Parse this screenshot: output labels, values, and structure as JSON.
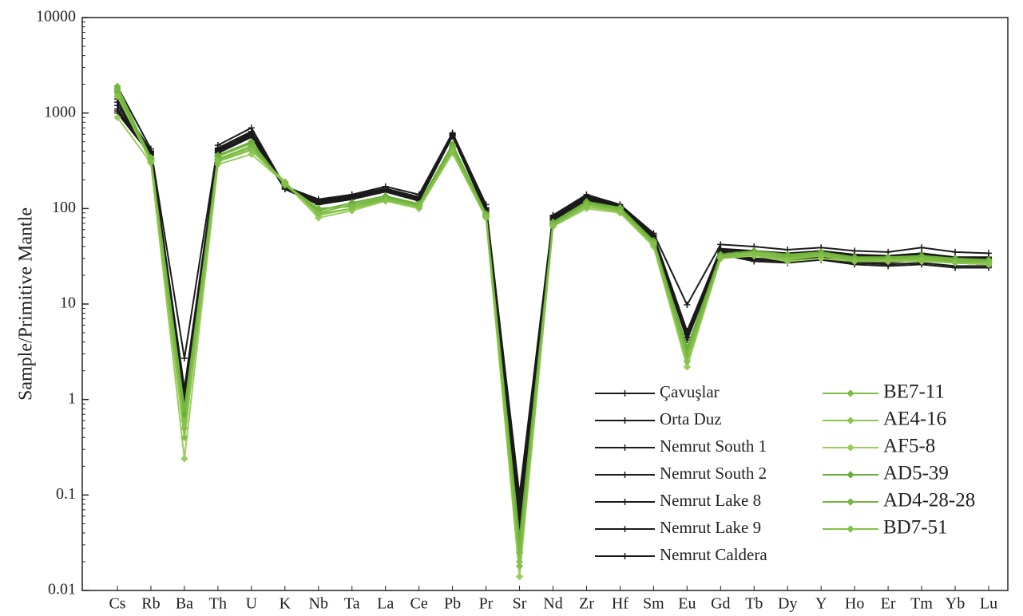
{
  "chart_data": {
    "type": "line",
    "yscale": "log",
    "y_label": "Sample/Primitive Mantle",
    "categories": [
      "Cs",
      "Rb",
      "Ba",
      "Th",
      "U",
      "K",
      "Nb",
      "Ta",
      "La",
      "Ce",
      "Pb",
      "Pr",
      "Sr",
      "Nd",
      "Zr",
      "Hf",
      "Sm",
      "Eu",
      "Gd",
      "Tb",
      "Dy",
      "Y",
      "Ho",
      "Er",
      "Tm",
      "Yb",
      "Lu"
    ],
    "ylim": [
      0.01,
      10000
    ],
    "yticks": [
      0.01,
      0.1,
      1,
      10,
      100,
      1000,
      10000
    ],
    "series": [
      {
        "name": "Çavuşlar",
        "color": "#1a1a1a",
        "marker": "plus",
        "values": [
          1900,
          420,
          2.7,
          460,
          700,
          170,
          125,
          140,
          170,
          140,
          620,
          110,
          0.1,
          85,
          140,
          110,
          55,
          9.8,
          42,
          40,
          37,
          39,
          36,
          35,
          39,
          35,
          34
        ]
      },
      {
        "name": "Orta Duz",
        "color": "#1a1a1a",
        "marker": "plus",
        "values": [
          1100,
          400,
          1.2,
          410,
          620,
          165,
          120,
          135,
          160,
          130,
          600,
          100,
          0.07,
          80,
          130,
          105,
          52,
          5,
          38,
          36,
          34,
          36,
          33,
          32,
          34,
          31,
          31
        ]
      },
      {
        "name": "Nemrut South 1",
        "color": "#1a1a1a",
        "marker": "plus",
        "values": [
          1300,
          380,
          1.0,
          400,
          580,
          160,
          115,
          130,
          155,
          125,
          590,
          95,
          0.05,
          78,
          125,
          100,
          50,
          4.5,
          35,
          30,
          29,
          31,
          28,
          27,
          29,
          27,
          26
        ]
      },
      {
        "name": "Nemrut South 2",
        "color": "#1a1a1a",
        "marker": "plus",
        "values": [
          1000,
          360,
          0.9,
          380,
          560,
          160,
          110,
          125,
          150,
          120,
          570,
          92,
          0.04,
          75,
          120,
          100,
          48,
          4.2,
          33,
          28,
          27,
          29,
          26,
          25,
          26,
          24,
          24
        ]
      },
      {
        "name": "Nemrut Lake 8",
        "color": "#1a1a1a",
        "marker": "plus",
        "values": [
          1200,
          390,
          1.1,
          420,
          600,
          165,
          118,
          132,
          158,
          128,
          600,
          98,
          0.06,
          82,
          128,
          103,
          51,
          4.8,
          36,
          33,
          31,
          33,
          30,
          29,
          30,
          28,
          28
        ]
      },
      {
        "name": "Nemrut Lake 9",
        "color": "#1a1a1a",
        "marker": "plus",
        "values": [
          1400,
          400,
          1.3,
          430,
          640,
          170,
          122,
          138,
          162,
          132,
          610,
          102,
          0.08,
          84,
          135,
          107,
          53,
          5.2,
          37,
          35,
          33,
          35,
          32,
          31,
          33,
          30,
          30
        ]
      },
      {
        "name": "Nemrut Caldera",
        "color": "#1a1a1a",
        "marker": "plus",
        "values": [
          1050,
          370,
          0.95,
          390,
          570,
          160,
          112,
          128,
          152,
          122,
          580,
          94,
          0.045,
          76,
          122,
          101,
          49,
          4.4,
          34,
          29,
          28,
          30,
          27,
          26,
          27,
          25,
          25
        ]
      },
      {
        "name": "BE7-11",
        "color": "#7dbb45",
        "marker": "diamond",
        "values": [
          1900,
          330,
          0.6,
          350,
          480,
          180,
          90,
          110,
          130,
          110,
          450,
          85,
          0.03,
          70,
          115,
          100,
          45,
          3.2,
          32,
          35,
          32,
          34,
          30,
          30,
          31,
          29,
          28
        ]
      },
      {
        "name": "AE4-16",
        "color": "#8cc450",
        "marker": "diamond",
        "values": [
          1600,
          320,
          0.5,
          320,
          430,
          190,
          85,
          100,
          125,
          105,
          420,
          82,
          0.02,
          68,
          110,
          95,
          43,
          2.8,
          31,
          34,
          30,
          33,
          29,
          29,
          30,
          28,
          27
        ]
      },
      {
        "name": "AF5-8",
        "color": "#9acd5c",
        "marker": "diamond",
        "values": [
          900,
          300,
          0.24,
          290,
          370,
          185,
          80,
          95,
          120,
          100,
          380,
          80,
          0.014,
          65,
          100,
          90,
          40,
          2.2,
          30,
          32,
          28,
          30,
          28,
          28,
          28,
          27,
          26
        ]
      },
      {
        "name": "AD5-39",
        "color": "#6aae38",
        "marker": "diamond",
        "values": [
          1700,
          330,
          0.7,
          360,
          500,
          175,
          95,
          115,
          135,
          112,
          470,
          88,
          0.035,
          72,
          118,
          102,
          46,
          3.5,
          33,
          36,
          33,
          35,
          31,
          31,
          32,
          30,
          29
        ]
      },
      {
        "name": "AD4-28-28",
        "color": "#74b740",
        "marker": "diamond",
        "values": [
          1800,
          340,
          0.8,
          330,
          450,
          180,
          100,
          105,
          128,
          108,
          440,
          84,
          0.025,
          69,
          112,
          98,
          44,
          3.0,
          31,
          33,
          31,
          33,
          29,
          30,
          30,
          28,
          28
        ]
      },
      {
        "name": "BD7-51",
        "color": "#84c04a",
        "marker": "diamond",
        "values": [
          1500,
          310,
          0.4,
          310,
          410,
          185,
          88,
          100,
          122,
          104,
          400,
          81,
          0.018,
          66,
          105,
          93,
          42,
          2.5,
          30,
          33,
          29,
          32,
          28,
          29,
          29,
          27,
          27
        ]
      }
    ]
  }
}
